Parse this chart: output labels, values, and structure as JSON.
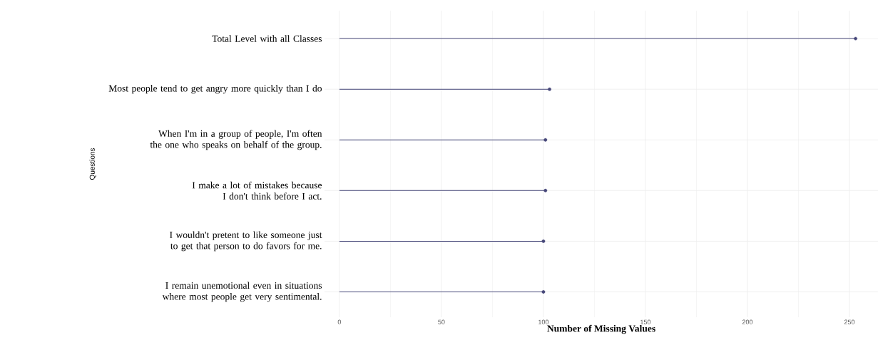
{
  "chart_data": {
    "type": "lollipop",
    "orientation": "horizontal",
    "categories": [
      "Total Level with all Classes",
      "Most people tend to get angry more quickly than I do",
      "When I'm in a group of people, I'm often the one who speaks on behalf of the group.",
      "I make a lot of mistakes because I don't think before I act.",
      "I wouldn't pretent to like someone just to get that person to do favors for me.",
      "I remain unemotional even in situations where most people get very sentimental."
    ],
    "values": [
      253,
      103,
      101,
      101,
      100,
      100
    ],
    "color": "#464779",
    "marker": "circle",
    "xlim": [
      -7.3,
      264
    ],
    "xticks": [
      0,
      50,
      100,
      150,
      200,
      250
    ],
    "xlabel": "Number of Missing Values",
    "ylabel": "Questions",
    "grid": true
  }
}
